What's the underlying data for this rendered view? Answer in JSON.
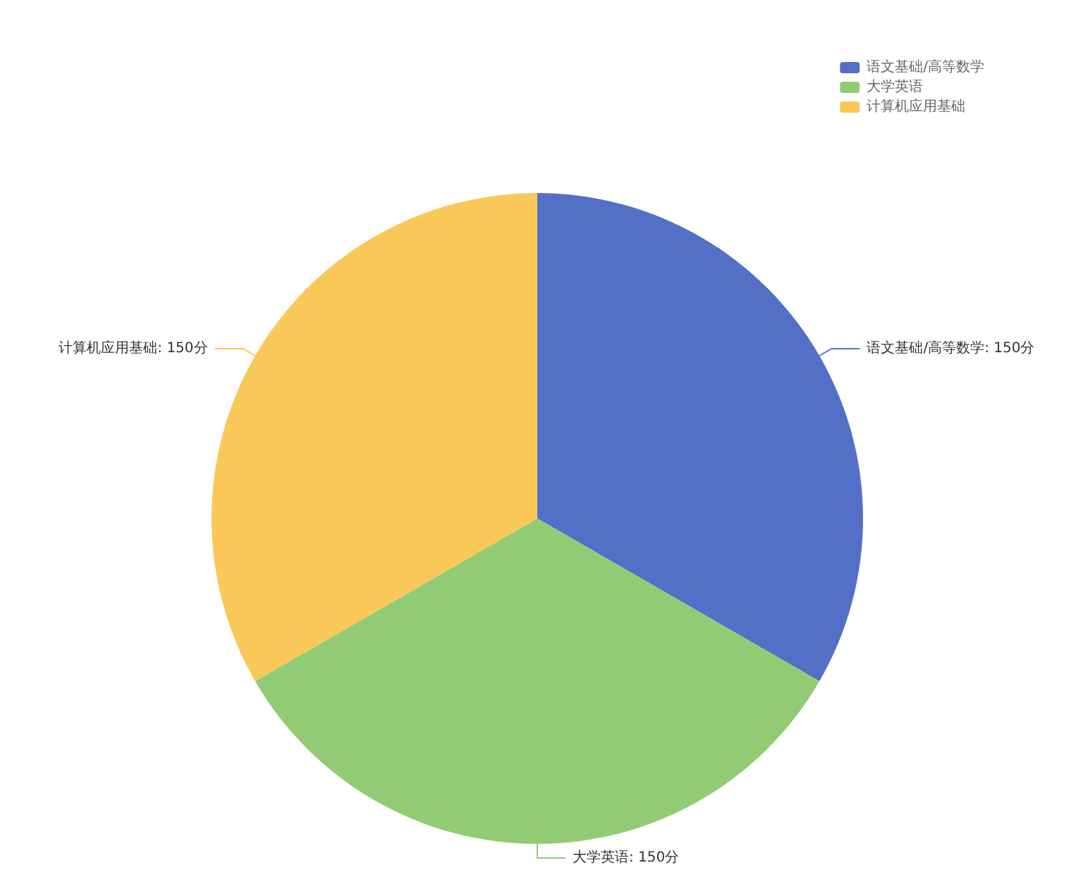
{
  "chart_data": {
    "type": "pie",
    "categories": [
      "语文基础/高等数学",
      "大学英语",
      "计算机应用基础"
    ],
    "values": [
      150,
      150,
      150
    ],
    "value_labels": [
      "语文基础/高等数学: 150分",
      "大学英语: 150分",
      "计算机应用基础: 150分"
    ],
    "colors": [
      "#5470c6",
      "#91cc75",
      "#fac858"
    ],
    "legend": "top right"
  }
}
